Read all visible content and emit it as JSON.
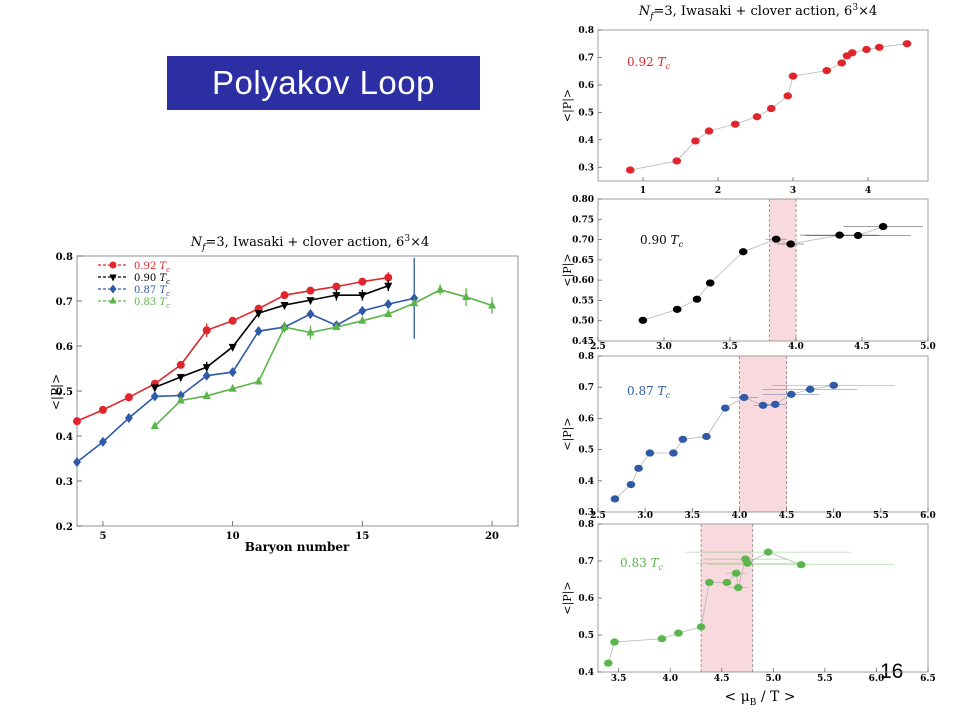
{
  "slide": {
    "title": "Polyakov Loop",
    "page_number": "16"
  },
  "chart_data": [
    {
      "type": "line",
      "title": "N_f=3, Iwasaki + clover action, 6^3×4",
      "title_parts": {
        "a": "N",
        "b": "f",
        "c": "=3, Iwasaki + clover action, 6",
        "d": "3",
        "e": "×4"
      },
      "xlabel": "Baryon number",
      "ylabel": "<|P|>",
      "xlim": [
        4,
        21
      ],
      "ylim": [
        0.2,
        0.8
      ],
      "xticks": [
        5,
        10,
        15,
        20
      ],
      "yticks": [
        0.2,
        0.3,
        0.4,
        0.5,
        0.6,
        0.7,
        0.8
      ],
      "legend_position": "top-left",
      "series": [
        {
          "name": "0.92 T_c",
          "label_num": "0.92",
          "label_unit": "T",
          "label_sub": "c",
          "color": "#e0262c",
          "marker": "circle",
          "x": [
            4,
            5,
            6,
            7,
            8,
            9,
            10,
            11,
            12,
            13,
            14,
            15,
            16
          ],
          "y": [
            0.433,
            0.458,
            0.486,
            0.516,
            0.558,
            0.635,
            0.656,
            0.683,
            0.713,
            0.723,
            0.732,
            0.743,
            0.752
          ],
          "err": [
            0,
            0,
            0,
            0,
            0,
            0.015,
            0,
            0,
            0,
            0,
            0,
            0,
            0.01
          ]
        },
        {
          "name": "0.90 T_c",
          "label_num": "0.90",
          "label_unit": "T",
          "label_sub": "c",
          "color": "#000000",
          "marker": "triangle-down",
          "x": [
            7,
            8,
            9,
            10,
            11,
            12,
            13,
            14,
            15,
            16
          ],
          "y": [
            0.508,
            0.531,
            0.553,
            0.598,
            0.673,
            0.691,
            0.702,
            0.713,
            0.713,
            0.734
          ],
          "err": [
            0,
            0,
            0.012,
            0,
            0,
            0,
            0,
            0.012,
            0.012,
            0.01
          ]
        },
        {
          "name": "0.87 T_c",
          "label_num": "0.87",
          "label_unit": "T",
          "label_sub": "c",
          "color": "#2f5aa8",
          "marker": "diamond",
          "x": [
            4,
            5,
            6,
            7,
            8,
            9,
            10,
            11,
            12,
            13,
            14,
            15,
            16,
            17
          ],
          "y": [
            0.342,
            0.387,
            0.44,
            0.488,
            0.49,
            0.534,
            0.542,
            0.633,
            0.642,
            0.671,
            0.646,
            0.678,
            0.693,
            0.706
          ],
          "err": [
            0,
            0,
            0,
            0,
            0,
            0,
            0,
            0,
            0,
            0,
            0,
            0,
            0,
            0.09
          ]
        },
        {
          "name": "0.83 T_c",
          "label_num": "0.83",
          "label_unit": "T",
          "label_sub": "c",
          "color": "#5ab54a",
          "marker": "triangle-up",
          "x": [
            7,
            8,
            9,
            10,
            11,
            12,
            13,
            14,
            15,
            16,
            17,
            18,
            19,
            20
          ],
          "y": [
            0.422,
            0.479,
            0.489,
            0.505,
            0.521,
            0.642,
            0.63,
            0.642,
            0.656,
            0.671,
            0.695,
            0.725,
            0.709,
            0.69
          ],
          "err": [
            0,
            0,
            0,
            0,
            0,
            0.012,
            0.015,
            0,
            0,
            0,
            0,
            0.012,
            0.02,
            0.018
          ]
        }
      ]
    },
    {
      "type": "scatter",
      "title": "N_f=3, Iwasaki + clover action, 6^3×4",
      "title_parts": {
        "a": "N",
        "b": "f",
        "c": "=3,  Iwasaki  + clover action, 6",
        "d": "3",
        "e": "×4"
      },
      "ylabel": "<|P|>",
      "annotation": "0.92 T_c",
      "annotation_parts": {
        "num": "0.92",
        "unit": "T",
        "sub": "c"
      },
      "color": "#e0262c",
      "xlim": [
        0.4,
        4.8
      ],
      "ylim": [
        0.25,
        0.8
      ],
      "xticks": [
        1,
        2,
        3,
        4
      ],
      "yticks": [
        0.3,
        0.4,
        0.5,
        0.6,
        0.7,
        0.8
      ],
      "x": [
        0.83,
        1.45,
        1.7,
        1.88,
        2.23,
        2.52,
        2.71,
        2.93,
        3.0,
        3.45,
        3.65,
        3.72,
        3.79,
        3.98,
        4.15,
        4.52
      ],
      "y": [
        0.29,
        0.323,
        0.396,
        0.432,
        0.457,
        0.484,
        0.514,
        0.56,
        0.632,
        0.652,
        0.68,
        0.706,
        0.717,
        0.729,
        0.737,
        0.75
      ]
    },
    {
      "type": "scatter",
      "ylabel": "<|P|>",
      "annotation": "0.90 T_c",
      "annotation_parts": {
        "num": "0.90",
        "unit": "T",
        "sub": "c"
      },
      "color": "#000000",
      "xlim": [
        2.5,
        5.0
      ],
      "ylim": [
        0.45,
        0.8
      ],
      "xticks": [
        2.5,
        3.0,
        3.5,
        4.0,
        4.5,
        5.0
      ],
      "xtick_labels": [
        "2.5",
        "3.0",
        "3.5",
        "4.0",
        "4.5",
        "5.0"
      ],
      "yticks": [
        0.45,
        0.5,
        0.55,
        0.6,
        0.65,
        0.7,
        0.75,
        0.8
      ],
      "ytick_labels": [
        "0.45",
        "0.50",
        "0.55",
        "0.60",
        "0.65",
        "0.70",
        "0.75",
        "0.80"
      ],
      "shaded_band": [
        3.8,
        4.0
      ],
      "x": [
        2.84,
        3.1,
        3.25,
        3.35,
        3.6,
        3.85,
        3.96,
        4.33,
        4.47,
        4.66
      ],
      "y": [
        0.501,
        0.528,
        0.553,
        0.593,
        0.67,
        0.701,
        0.689,
        0.711,
        0.71,
        0.732
      ],
      "xerr": [
        0,
        0,
        0,
        0,
        0,
        0.08,
        0.1,
        0.3,
        0.4,
        0.3
      ]
    },
    {
      "type": "scatter",
      "ylabel": "<|P|>",
      "annotation": "0.87 T_c",
      "annotation_parts": {
        "num": "0.87",
        "unit": "T",
        "sub": "c"
      },
      "color": "#2f5aa8",
      "xlim": [
        2.5,
        6.0
      ],
      "ylim": [
        0.3,
        0.8
      ],
      "xticks": [
        2.5,
        3.0,
        3.5,
        4.0,
        4.5,
        5.0,
        5.5,
        6.0
      ],
      "xtick_labels": [
        "2.5",
        "3.0",
        "3.5",
        "4.0",
        "4.5",
        "5.0",
        "5.5",
        "6.0"
      ],
      "yticks": [
        0.3,
        0.4,
        0.5,
        0.6,
        0.7,
        0.8
      ],
      "shaded_band": [
        4.0,
        4.5
      ],
      "x": [
        2.68,
        2.85,
        2.93,
        3.05,
        3.3,
        3.4,
        3.65,
        3.85,
        4.05,
        4.25,
        4.38,
        4.55,
        4.75,
        5.0
      ],
      "y": [
        0.342,
        0.388,
        0.44,
        0.489,
        0.489,
        0.533,
        0.542,
        0.633,
        0.667,
        0.642,
        0.645,
        0.677,
        0.693,
        0.706
      ],
      "xerr": [
        0,
        0,
        0,
        0,
        0,
        0,
        0,
        0,
        0.15,
        0.1,
        0.12,
        0.3,
        0.5,
        0.65
      ]
    },
    {
      "type": "scatter",
      "ylabel": "<|P|>",
      "annotation": "0.83 T_c",
      "annotation_parts": {
        "num": "0.83",
        "unit": "T",
        "sub": "c"
      },
      "color": "#5ab54a",
      "xlabel": "< μ_B / T >",
      "xlabel_parts": {
        "a": "< μ",
        "b": "B",
        "c": " / T >"
      },
      "xlim": [
        3.3,
        6.5
      ],
      "ylim": [
        0.4,
        0.8
      ],
      "xticks": [
        3.5,
        4.0,
        4.5,
        5.0,
        5.5,
        6.0,
        6.5
      ],
      "xtick_labels": [
        "3.5",
        "4.0",
        "4.5",
        "5.0",
        "5.5",
        "6.0",
        "6.5"
      ],
      "yticks": [
        0.4,
        0.5,
        0.6,
        0.7,
        0.8
      ],
      "shaded_band": [
        4.3,
        4.8
      ],
      "x": [
        3.4,
        3.46,
        3.92,
        4.08,
        4.3,
        4.38,
        4.55,
        4.64,
        4.66,
        4.73,
        4.75,
        4.95,
        5.27
      ],
      "y": [
        0.424,
        0.481,
        0.49,
        0.505,
        0.522,
        0.642,
        0.642,
        0.667,
        0.628,
        0.705,
        0.694,
        0.724,
        0.69
      ],
      "xerr": [
        0,
        0,
        0,
        0,
        0,
        0,
        0,
        0.1,
        0.1,
        0.4,
        0.5,
        0.8,
        0.9
      ]
    }
  ]
}
